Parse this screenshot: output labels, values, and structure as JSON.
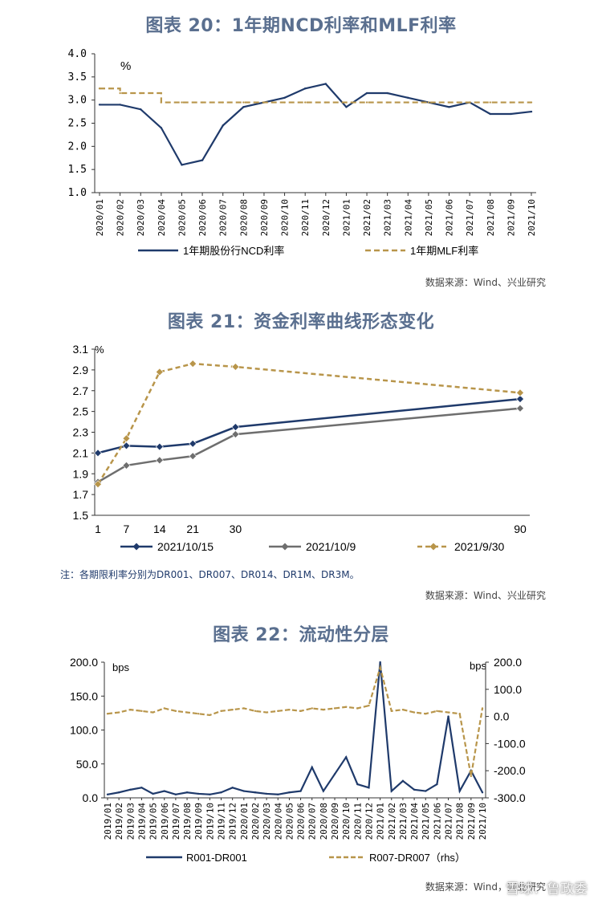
{
  "figures": {
    "f20": {
      "title": "图表 20：1年期NCD利率和MLF利率",
      "unit": "%",
      "source": "数据来源：Wind、兴业研究"
    },
    "f21": {
      "title": "图表 21：资金利率曲线形态变化",
      "unit": "%",
      "note": "注：各期限利率分别为DR001、DR007、DR014、DR1M、DR3M。",
      "source": "数据来源：Wind、兴业研究"
    },
    "f22": {
      "title": "图表 22：流动性分层",
      "unit_left": "bps",
      "unit_right": "bps",
      "source": "数据来源：Wind，兴业研究"
    }
  },
  "watermark": "雪球：鲁政委",
  "colors": {
    "navy": "#1f3a6b",
    "gold": "#b8954a",
    "gray": "#6e6e6e",
    "title": "#5a6f8f"
  },
  "chart_data": [
    {
      "type": "line",
      "title": "图表 20：1年期NCD利率和MLF利率",
      "ylabel": "%",
      "ylim": [
        1.0,
        4.0
      ],
      "yticks": [
        "1.0",
        "1.5",
        "2.0",
        "2.5",
        "3.0",
        "3.5",
        "4.0"
      ],
      "categories": [
        "2020/01",
        "2020/02",
        "2020/03",
        "2020/04",
        "2020/05",
        "2020/06",
        "2020/07",
        "2020/08",
        "2020/09",
        "2020/10",
        "2020/11",
        "2020/12",
        "2021/01",
        "2021/02",
        "2021/03",
        "2021/04",
        "2021/05",
        "2021/06",
        "2021/07",
        "2021/08",
        "2021/09",
        "2021/10"
      ],
      "series": [
        {
          "name": "1年期股份行NCD利率",
          "style": "solid",
          "values": [
            2.9,
            2.9,
            2.8,
            2.4,
            1.6,
            1.7,
            2.45,
            2.85,
            2.95,
            3.05,
            3.25,
            3.35,
            2.85,
            3.15,
            3.15,
            3.05,
            2.95,
            2.85,
            2.95,
            2.7,
            2.7,
            2.75
          ]
        },
        {
          "name": "1年期MLF利率",
          "style": "dashed",
          "values": [
            3.25,
            3.15,
            3.15,
            2.95,
            2.95,
            2.95,
            2.95,
            2.95,
            2.95,
            2.95,
            2.95,
            2.95,
            2.95,
            2.95,
            2.95,
            2.95,
            2.95,
            2.95,
            2.95,
            2.95,
            2.95,
            2.95
          ]
        }
      ],
      "legend": "bottom",
      "grid": false
    },
    {
      "type": "line",
      "title": "图表 21：资金利率曲线形态变化",
      "ylabel": "%",
      "ylim": [
        1.5,
        3.1
      ],
      "yticks": [
        "1.5",
        "1.7",
        "1.9",
        "2.1",
        "2.3",
        "2.5",
        "2.7",
        "2.9",
        "3.1"
      ],
      "x": [
        1,
        7,
        14,
        21,
        30,
        90
      ],
      "xticks": [
        "1",
        "7",
        "14",
        "21",
        "30",
        "90"
      ],
      "series": [
        {
          "name": "2021/10/15",
          "style": "solid-navy",
          "values": [
            2.1,
            2.17,
            2.16,
            2.19,
            2.35,
            2.62
          ]
        },
        {
          "name": "2021/10/9",
          "style": "solid-gray",
          "values": [
            1.82,
            1.98,
            2.03,
            2.07,
            2.28,
            2.53
          ]
        },
        {
          "name": "2021/9/30",
          "style": "dashed-gold",
          "values": [
            1.8,
            2.24,
            2.88,
            2.96,
            2.93,
            2.68
          ]
        }
      ],
      "legend": "bottom",
      "grid": false
    },
    {
      "type": "line",
      "title": "图表 22：流动性分层",
      "ylabel": "bps",
      "ylabel_right": "bps",
      "ylim": [
        0,
        200
      ],
      "ylim_right": [
        -300,
        200
      ],
      "yticks_left": [
        "0.0",
        "50.0",
        "100.0",
        "150.0",
        "200.0"
      ],
      "yticks_right": [
        "-300.0",
        "-200.0",
        "-100.0",
        "0.0",
        "100.0",
        "200.0"
      ],
      "categories": [
        "2019/01",
        "2019/02",
        "2019/03",
        "2019/04",
        "2019/05",
        "2019/06",
        "2019/07",
        "2019/08",
        "2019/09",
        "2019/10",
        "2019/11",
        "2019/12",
        "2020/01",
        "2020/02",
        "2020/03",
        "2020/04",
        "2020/05",
        "2020/06",
        "2020/07",
        "2020/08",
        "2020/09",
        "2020/10",
        "2020/11",
        "2020/12",
        "2021/01",
        "2021/02",
        "2021/03",
        "2021/04",
        "2021/05",
        "2021/06",
        "2021/07",
        "2021/08",
        "2021/09",
        "2021/10"
      ],
      "series": [
        {
          "name": "R001-DR001",
          "axis": "left",
          "style": "solid",
          "values": [
            5,
            8,
            12,
            15,
            6,
            10,
            5,
            8,
            6,
            5,
            8,
            15,
            10,
            8,
            6,
            5,
            8,
            10,
            45,
            10,
            35,
            60,
            20,
            15,
            200,
            10,
            25,
            12,
            10,
            20,
            120,
            10,
            40,
            8
          ]
        },
        {
          "name": "R007-DR007（rhs）",
          "axis": "right",
          "style": "dashed",
          "values": [
            10,
            15,
            25,
            20,
            15,
            30,
            20,
            15,
            10,
            5,
            20,
            25,
            30,
            20,
            15,
            20,
            25,
            20,
            30,
            25,
            30,
            35,
            30,
            40,
            180,
            20,
            25,
            15,
            10,
            20,
            15,
            10,
            -220,
            30
          ]
        }
      ],
      "legend": "bottom",
      "grid": false
    }
  ]
}
